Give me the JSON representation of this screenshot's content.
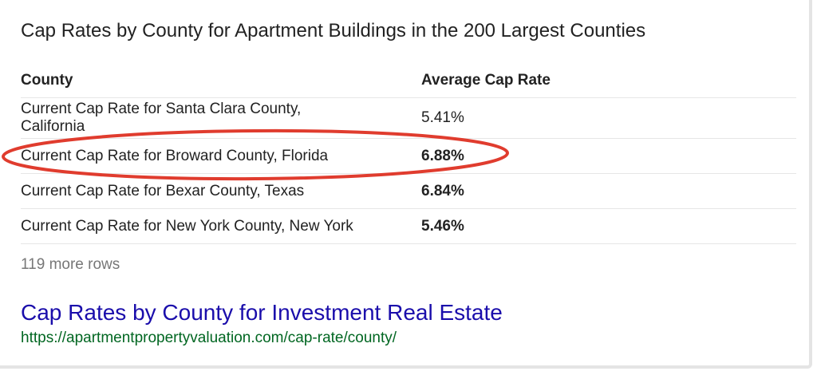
{
  "snippet": {
    "title": "Cap Rates by County for Apartment Buildings in the 200 Largest Counties",
    "table": {
      "headers": [
        "County",
        "Average Cap Rate"
      ],
      "rows": [
        {
          "county": "Current Cap Rate for Santa Clara County, California",
          "rate": "5.41%"
        },
        {
          "county": "Current Cap Rate for Broward County, Florida",
          "rate": "6.88%"
        },
        {
          "county": "Current Cap Rate for Bexar County, Texas",
          "rate": "6.84%"
        },
        {
          "county": "Current Cap Rate for New York County, New York",
          "rate": "5.46%"
        }
      ]
    },
    "more_rows": "119 more rows"
  },
  "result": {
    "link_text": "Cap Rates by County for Investment Real Estate",
    "url": "https://apartmentpropertyvaluation.com/cap-rate/county/"
  },
  "annotation": {
    "highlight_color": "#e03c2e"
  },
  "colors": {
    "link": "#1a0dab",
    "url": "#006621",
    "muted": "#777777"
  }
}
